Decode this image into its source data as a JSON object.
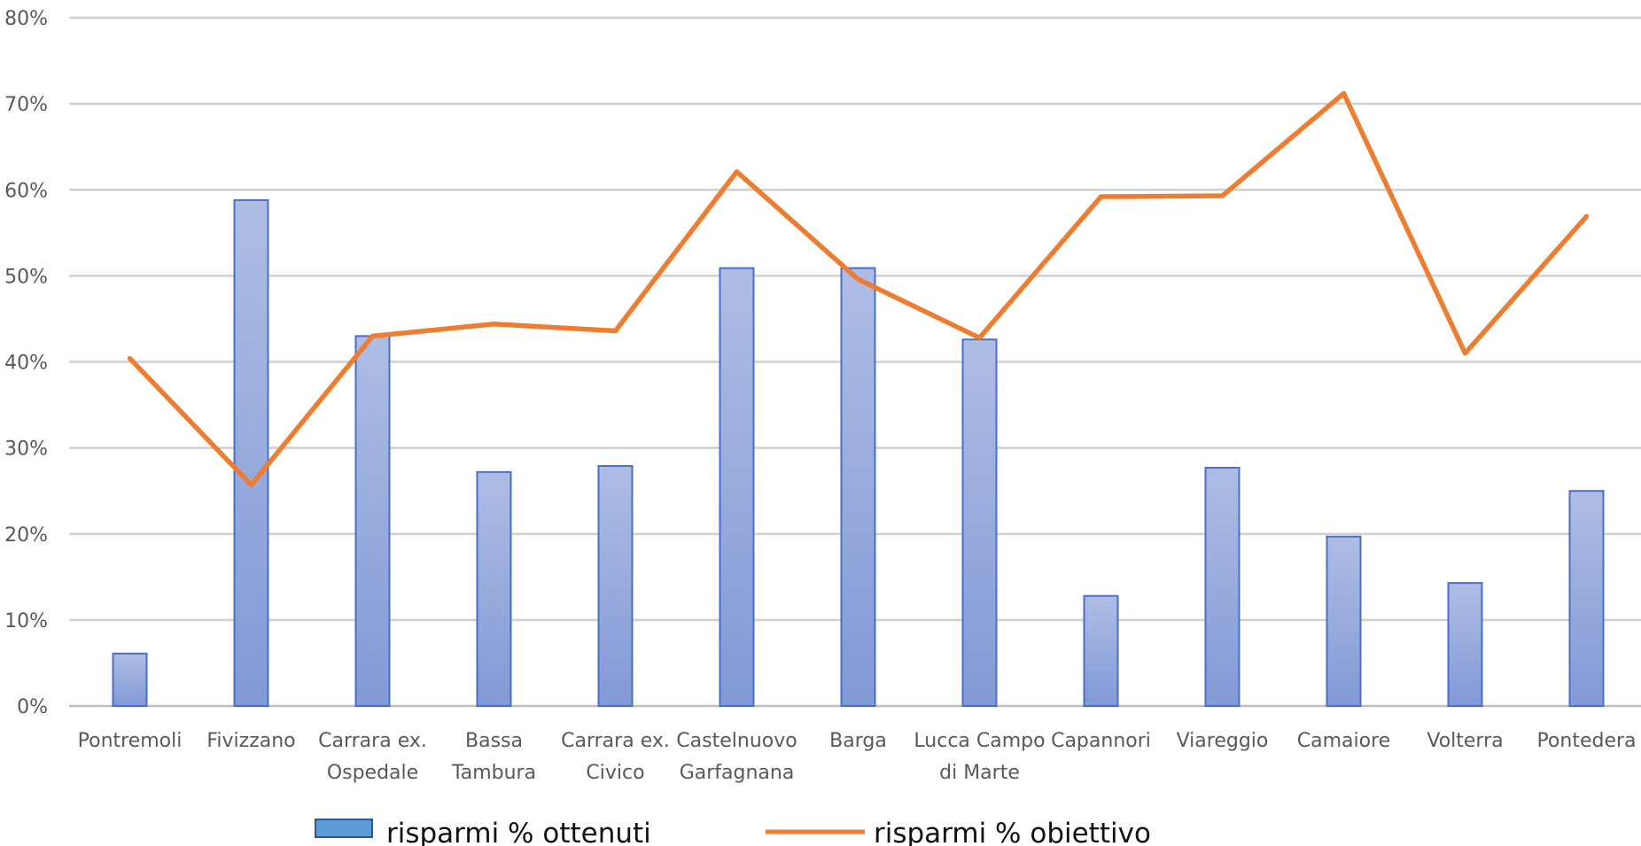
{
  "chart_data": {
    "type": "bar",
    "title": "",
    "xlabel": "",
    "ylabel": "",
    "categories": [
      [
        "Pontremoli"
      ],
      [
        "Fivizzano"
      ],
      [
        "Carrara ex.",
        "Ospedale"
      ],
      [
        "Bassa",
        "Tambura"
      ],
      [
        "Carrara ex.",
        "Civico"
      ],
      [
        "Castelnuovo",
        "Garfagnana"
      ],
      [
        "Barga"
      ],
      [
        "Lucca Campo",
        "di Marte"
      ],
      [
        "Capannori"
      ],
      [
        "Viareggio"
      ],
      [
        "Camaiore"
      ],
      [
        "Volterra"
      ],
      [
        "Pontedera"
      ]
    ],
    "series": [
      {
        "name": "risparmi % ottenuti",
        "kind": "bar",
        "color": "#8EA5DC",
        "values": [
          6.1,
          58.8,
          43.0,
          27.2,
          27.9,
          50.9,
          50.9,
          42.6,
          12.8,
          27.7,
          19.7,
          14.3,
          25.0
        ]
      },
      {
        "name": "risparmi % obiettivo",
        "kind": "line",
        "color": "#ED7D31",
        "values": [
          40.4,
          25.7,
          43.0,
          44.4,
          43.6,
          62.1,
          49.6,
          42.8,
          59.2,
          59.3,
          71.2,
          41.0,
          56.9
        ]
      }
    ],
    "ylim": [
      0,
      80
    ],
    "yticks": [
      "0%",
      "10%",
      "20%",
      "30%",
      "40%",
      "50%",
      "60%",
      "70%",
      "80%"
    ],
    "grid": true,
    "legend_position": "bottom"
  }
}
